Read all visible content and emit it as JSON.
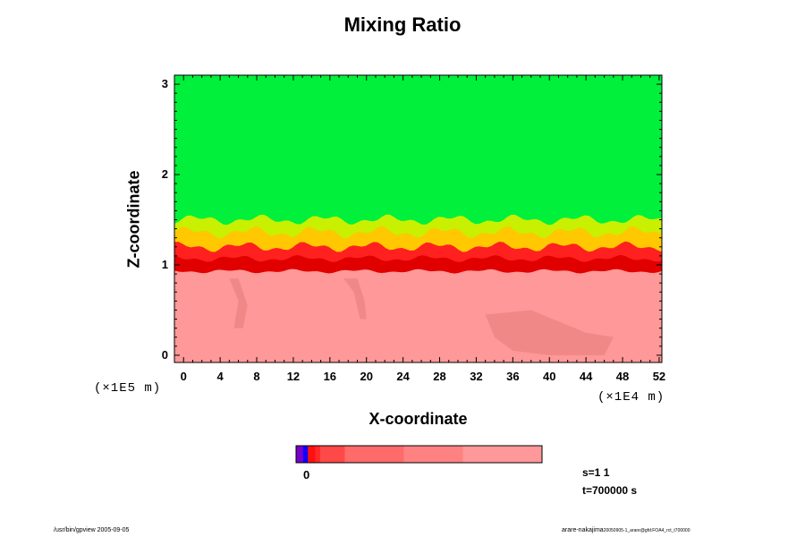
{
  "chart_data": {
    "type": "heatmap",
    "title": "Mixing Ratio",
    "xlabel": "X-coordinate",
    "ylabel": "Z-coordinate",
    "x_unit": "(×1E4 m)",
    "y_unit": "(×1E5 m)",
    "xlim": [
      -1,
      52.3
    ],
    "ylim": [
      -0.08,
      3.1
    ],
    "x_ticks": [
      0,
      4,
      8,
      12,
      16,
      20,
      24,
      28,
      32,
      36,
      40,
      44,
      48,
      52
    ],
    "y_ticks": [
      0,
      1,
      2,
      3
    ],
    "regions": {
      "upper_color": "#00f03c",
      "lower_color": "#ff9898",
      "interface_base_z": 0.93,
      "interface_top_z": 1.5
    },
    "colorbar": {
      "tick_label": "0",
      "colors": [
        "#7a00c8",
        "#1000ff",
        "#ff1010",
        "#ff2828",
        "#ff4848",
        "#ff6a6a",
        "#ff8282",
        "#ff9898"
      ],
      "fractions": [
        0.028,
        0.02,
        0.03,
        0.02,
        0.1,
        0.24,
        0.24,
        0.322
      ]
    }
  },
  "annotations": {
    "s_label": "s=1 1",
    "t_label": "t=700000 s",
    "footer_left": "/usr/bin/gpview 2005-09-05",
    "footer_right_user": "arare-nakajima",
    "footer_right_file": "20050905-1_arare@gfd:FOA4_rct_t700000"
  }
}
